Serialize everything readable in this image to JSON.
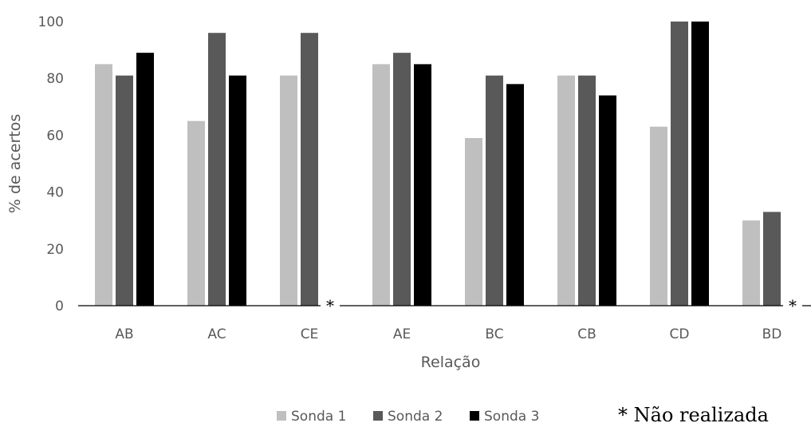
{
  "chart_data": {
    "type": "bar",
    "xlabel": "Relação",
    "ylabel": "% de acertos",
    "ylim": [
      0,
      100
    ],
    "yticks": [
      0,
      20,
      40,
      60,
      80,
      100
    ],
    "categories": [
      "AB",
      "AC",
      "CE",
      "AE",
      "BC",
      "CB",
      "CD",
      "BD"
    ],
    "series": [
      {
        "name": "Sonda 1",
        "color": "#bfbfbf",
        "values": [
          85,
          65,
          81,
          85,
          59,
          81,
          63,
          30
        ]
      },
      {
        "name": "Sonda 2",
        "color": "#595959",
        "values": [
          81,
          96,
          96,
          89,
          81,
          81,
          100,
          33
        ]
      },
      {
        "name": "Sonda 3",
        "color": "#000000",
        "values": [
          89,
          81,
          null,
          85,
          78,
          74,
          100,
          null
        ]
      }
    ],
    "not_performed_marker": "*",
    "not_performed_at": [
      "CE",
      "BD"
    ],
    "note": "* Não realizada",
    "legend_position": "bottom",
    "grid": false
  }
}
